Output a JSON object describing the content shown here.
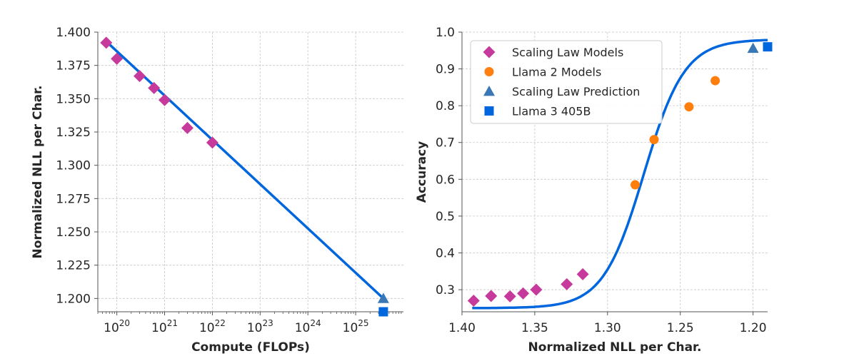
{
  "colors": {
    "fit_line": "#0066dd",
    "scaling_models": "#c53a9a",
    "llama2": "#ff7f0e",
    "prediction": "#3a78b5",
    "llama3": "#0066dd"
  },
  "chart_data": [
    {
      "type": "scatter",
      "xlabel": "Compute (FLOPs)",
      "ylabel": "Normalized NLL per Char.",
      "xscale": "log",
      "xlim": [
        4e+19,
        1e+26
      ],
      "ylim": [
        1.19,
        1.4
      ],
      "xticks": [
        "10^20",
        "10^21",
        "10^22",
        "10^23",
        "10^24",
        "10^25"
      ],
      "yticks": [
        "1.200",
        "1.225",
        "1.250",
        "1.275",
        "1.300",
        "1.325",
        "1.350",
        "1.375",
        "1.400"
      ],
      "grid": true,
      "fit_line": {
        "x": [
          6e+19,
          3.8e+25
        ],
        "y": [
          1.393,
          1.2
        ]
      },
      "series": [
        {
          "points": [
            [
              6e+19,
              1.392
            ],
            [
              1e+20,
              1.38
            ],
            [
              3e+20,
              1.367
            ],
            [
              6e+20,
              1.358
            ],
            [
              1e+21,
              1.349
            ],
            [
              3e+21,
              1.328
            ],
            [
              1e+22,
              1.317
            ]
          ]
        },
        {
          "points": [
            [
              3.8e+25,
              1.2
            ]
          ]
        },
        {
          "points": [
            [
              3.8e+25,
              1.19
            ]
          ]
        }
      ]
    },
    {
      "type": "scatter",
      "xlabel": "Normalized NLL per Char.",
      "ylabel": "Accuracy",
      "xlim": [
        1.4,
        1.19
      ],
      "ylim": [
        0.24,
        1.0
      ],
      "xticks": [
        "1.40",
        "1.35",
        "1.30",
        "1.25",
        "1.20"
      ],
      "yticks": [
        "0.3",
        "0.4",
        "0.5",
        "0.6",
        "0.7",
        "0.8",
        "0.9",
        "1.0"
      ],
      "grid": true,
      "legend_position": "top-left",
      "fit": {
        "type": "sigmoid",
        "lower": 0.25,
        "upper": 0.98,
        "midpoint": 1.275,
        "scale": 0.014
      },
      "series": [
        {
          "name": "Scaling Law Models",
          "marker": "diamond",
          "points": [
            [
              1.392,
              0.27
            ],
            [
              1.38,
              0.283
            ],
            [
              1.367,
              0.282
            ],
            [
              1.358,
              0.29
            ],
            [
              1.349,
              0.3
            ],
            [
              1.328,
              0.315
            ],
            [
              1.317,
              0.342
            ]
          ]
        },
        {
          "name": "Llama 2 Models",
          "marker": "circle",
          "points": [
            [
              1.281,
              0.585
            ],
            [
              1.268,
              0.708
            ],
            [
              1.244,
              0.797
            ],
            [
              1.226,
              0.868
            ]
          ]
        },
        {
          "name": "Scaling Law Prediction",
          "marker": "triangle",
          "points": [
            [
              1.2,
              0.956
            ]
          ]
        },
        {
          "name": "Llama 3 405B",
          "marker": "square",
          "points": [
            [
              1.19,
              0.96
            ]
          ]
        }
      ]
    }
  ]
}
